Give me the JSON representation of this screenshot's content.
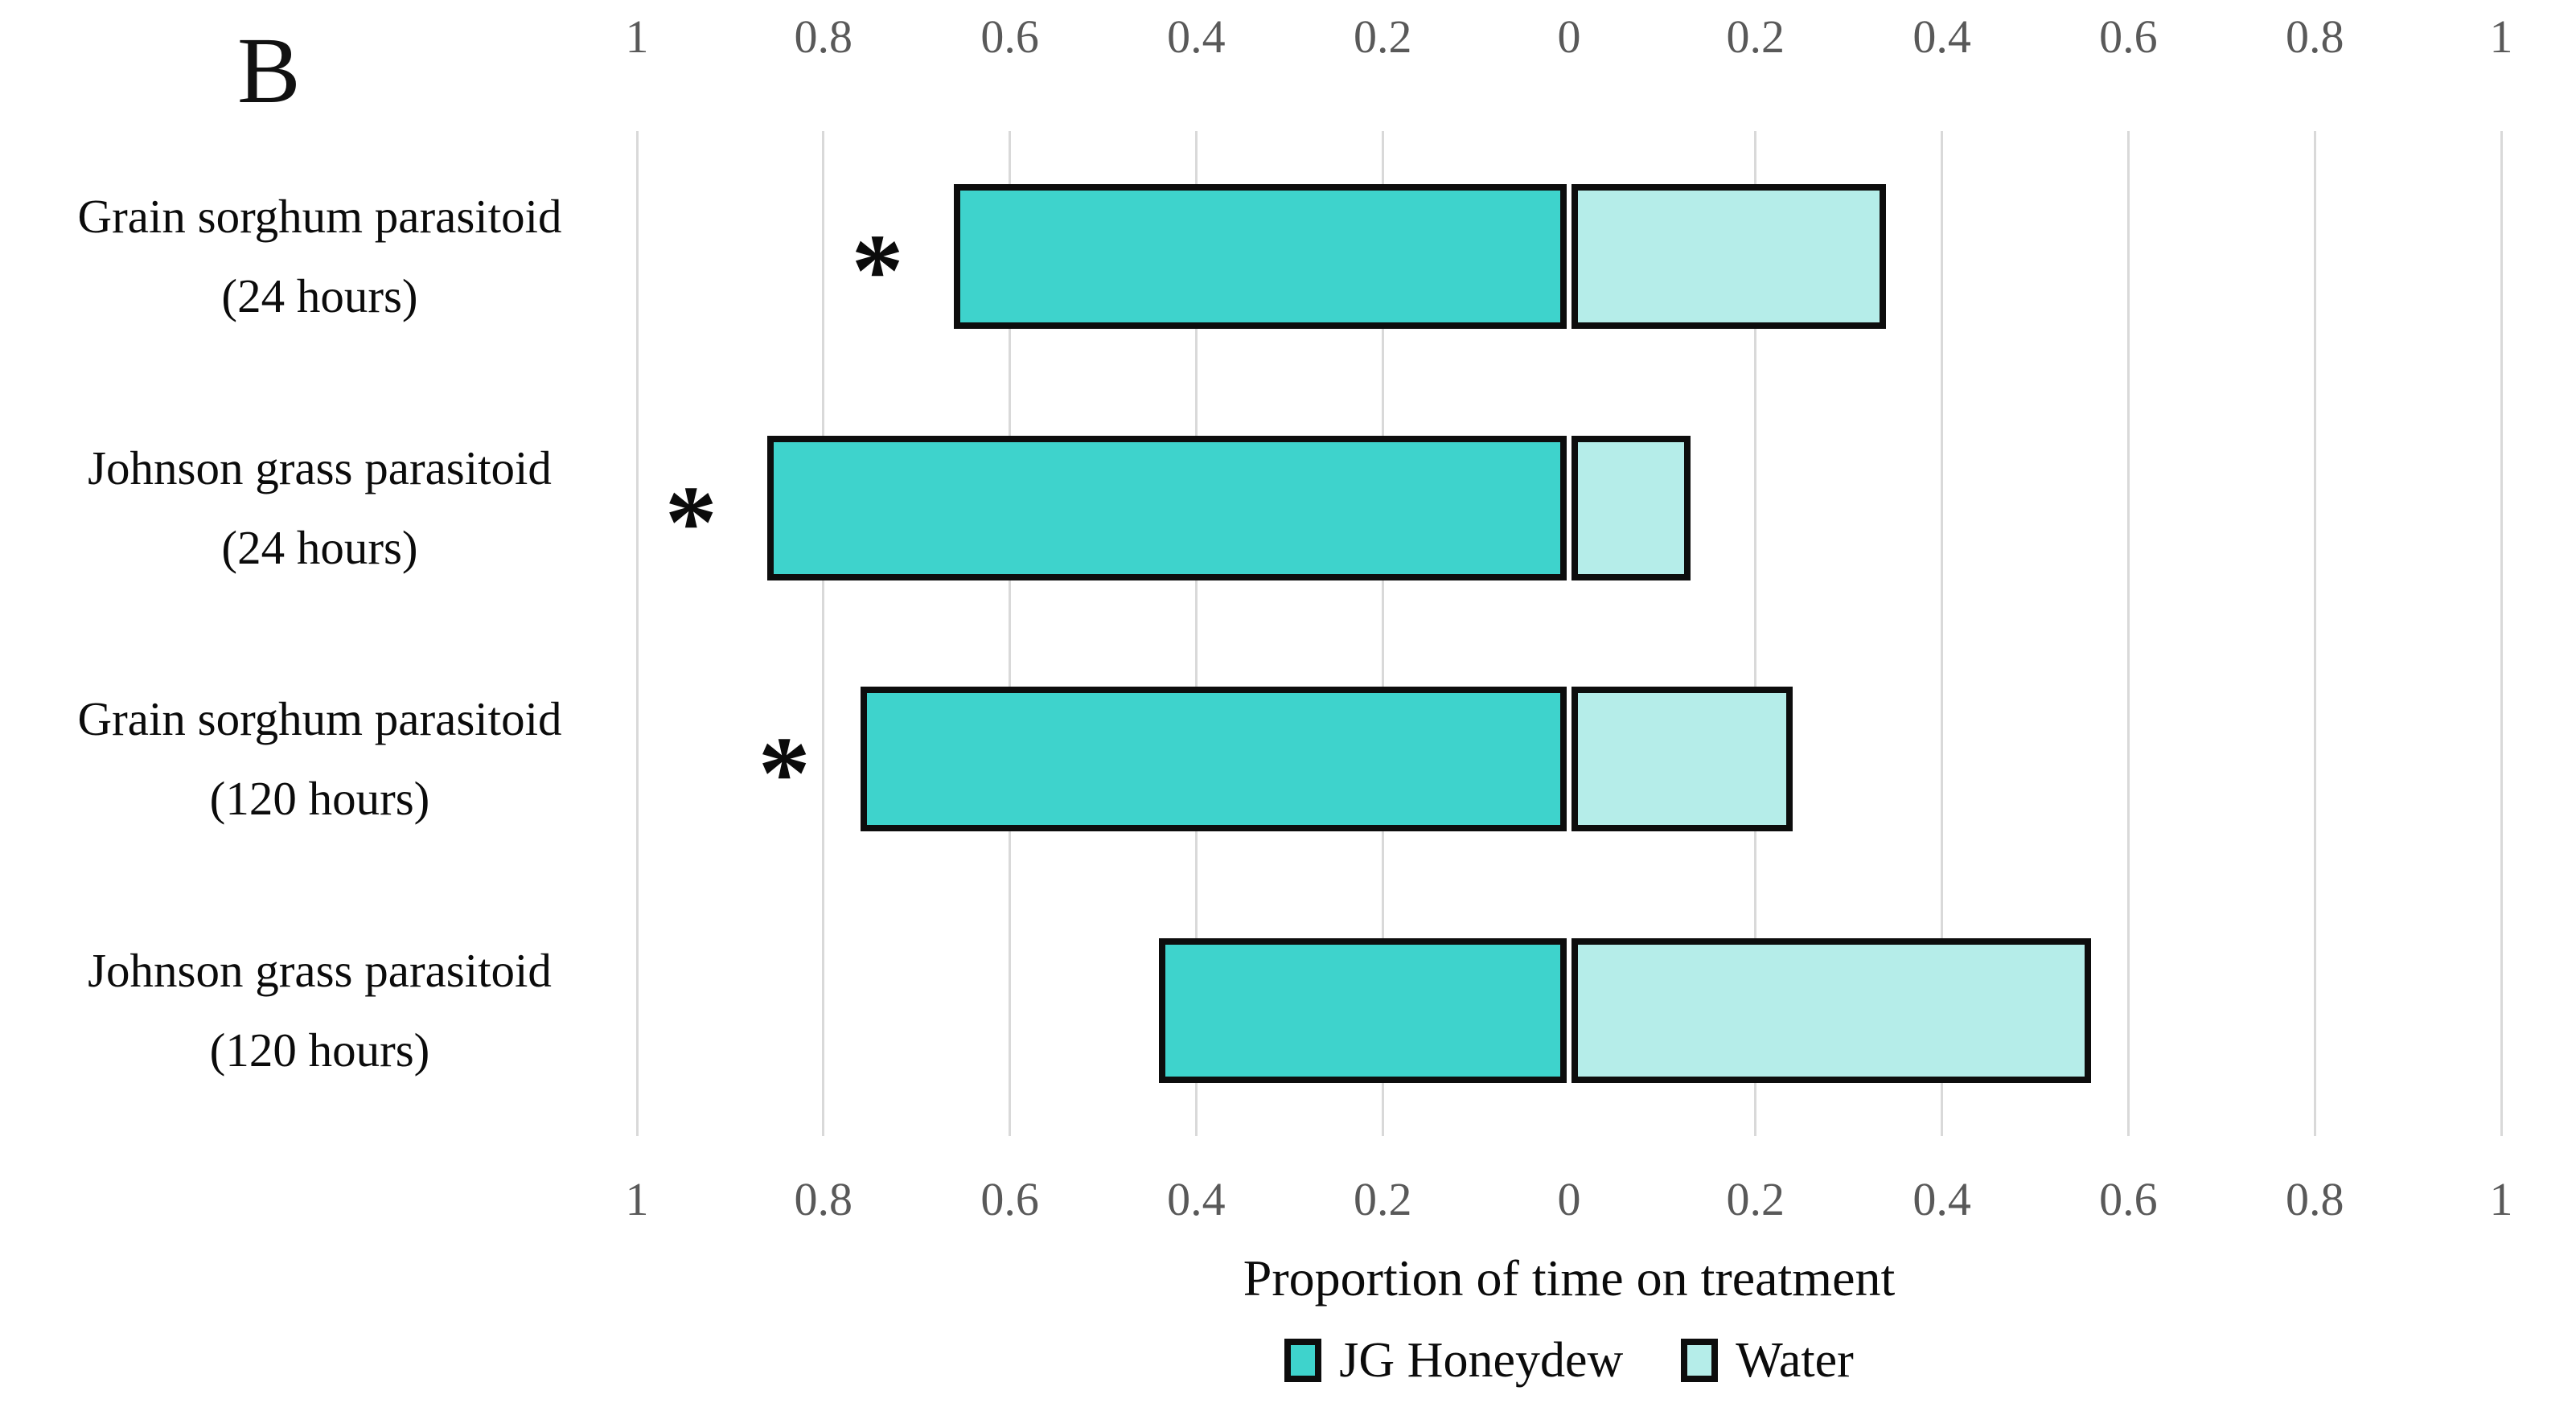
{
  "panel_label": "B",
  "colors": {
    "honeydew_fill": "#3ED3CC",
    "water_fill": "#B5EDE9",
    "bar_border": "#0D0D0D",
    "gridline": "#D9D9D9",
    "tick_text": "#595959",
    "text": "#0B0B0B"
  },
  "chart_data": {
    "type": "bar",
    "orientation": "horizontal-diverging",
    "title": "",
    "xlabel": "Proportion of time on treatment",
    "axis": {
      "min": 0,
      "max": 1,
      "tick_step": 0.2,
      "tick_labels": [
        "1",
        "0.8",
        "0.6",
        "0.4",
        "0.2",
        "0",
        "0.2",
        "0.4",
        "0.6",
        "0.8",
        "1"
      ],
      "top_axis": true,
      "bottom_axis": true,
      "grid": true
    },
    "categories": [
      {
        "line1": "Grain sorghum parasitoid",
        "line2": "(24 hours)",
        "significant": true,
        "marker": "*"
      },
      {
        "line1": "Johnson grass parasitoid",
        "line2": "(24 hours)",
        "significant": true,
        "marker": "*"
      },
      {
        "line1": "Grain sorghum parasitoid",
        "line2": "(120 hours)",
        "significant": true,
        "marker": "*"
      },
      {
        "line1": "Johnson grass parasitoid",
        "line2": "(120 hours)",
        "significant": false,
        "marker": ""
      }
    ],
    "series": [
      {
        "name": "JG Honeydew",
        "side": "left",
        "color_key": "honeydew_fill",
        "values": [
          0.66,
          0.86,
          0.76,
          0.44
        ]
      },
      {
        "name": "Water",
        "side": "right",
        "color_key": "water_fill",
        "values": [
          0.34,
          0.13,
          0.24,
          0.56
        ]
      }
    ],
    "legend": {
      "position": "bottom",
      "entries": [
        "JG Honeydew",
        "Water"
      ]
    }
  }
}
